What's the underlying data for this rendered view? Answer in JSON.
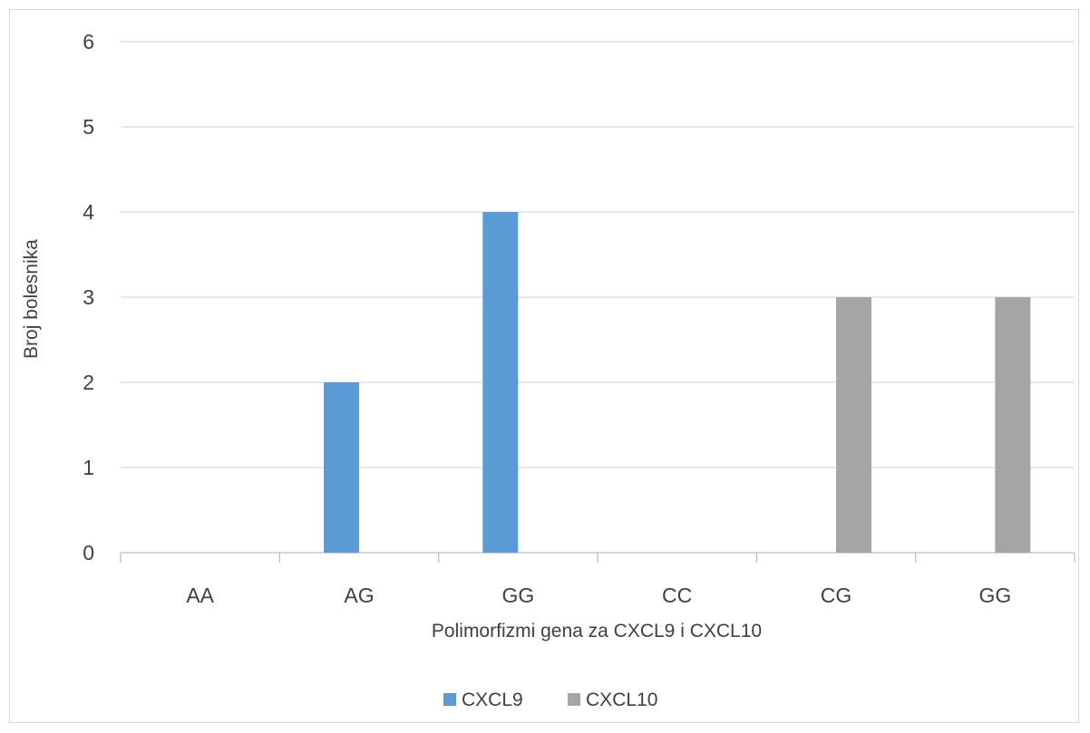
{
  "chart_data": {
    "type": "bar",
    "categories": [
      "AA",
      "AG",
      "GG",
      "CC",
      "CG",
      "GG"
    ],
    "series": [
      {
        "name": "CXCL9",
        "values": [
          0,
          2,
          4,
          null,
          null,
          null
        ],
        "color": "#5b9bd5"
      },
      {
        "name": "CXCL10",
        "values": [
          null,
          null,
          null,
          0,
          3,
          3
        ],
        "color": "#a5a5a5"
      }
    ],
    "title": "",
    "xlabel": "Polimorfizmi gena za CXCL9 i CXCL10",
    "ylabel": "Broj bolesnika",
    "ylim": [
      0,
      6
    ],
    "yticks": [
      0,
      1,
      2,
      3,
      4,
      5,
      6
    ],
    "grid": true,
    "legend_position": "bottom"
  }
}
